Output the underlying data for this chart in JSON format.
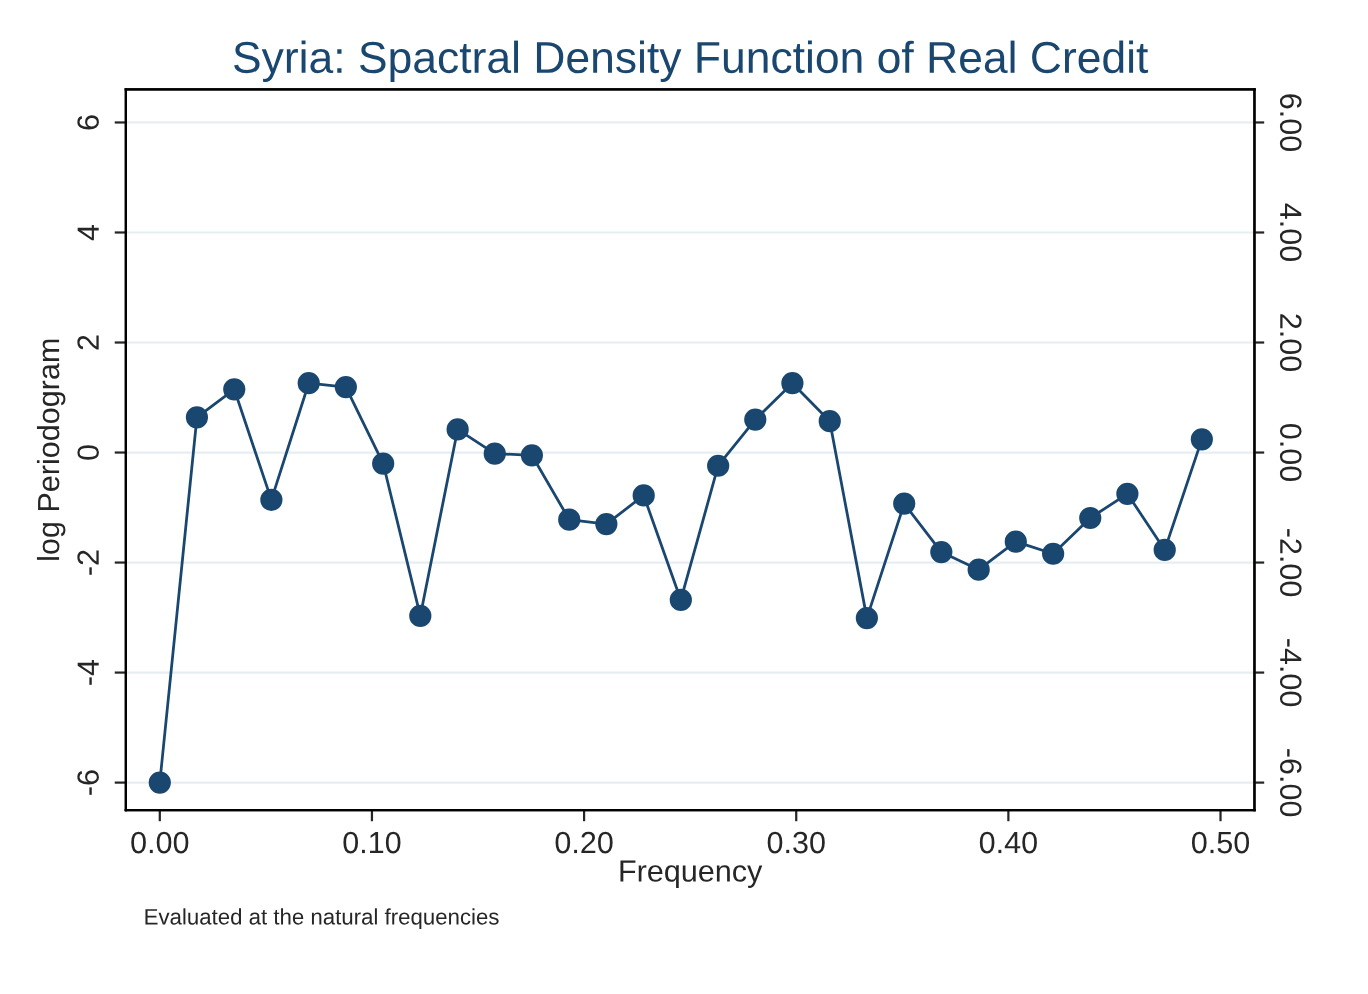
{
  "chart_data": {
    "type": "line",
    "title": "Syria: Spactral Density Function of Real Credit",
    "xlabel": "Frequency",
    "ylabel": "log Periodogram",
    "annotations": [
      "Evaluated at the natural frequencies"
    ],
    "x": [
      0.0,
      0.0175,
      0.0351,
      0.0526,
      0.0702,
      0.0877,
      0.1053,
      0.1228,
      0.1404,
      0.1579,
      0.1754,
      0.193,
      0.2105,
      0.2281,
      0.2456,
      0.2632,
      0.2807,
      0.2982,
      0.3158,
      0.3333,
      0.3509,
      0.3684,
      0.386,
      0.4035,
      0.4211,
      0.4386,
      0.4561,
      0.4737,
      0.4912
    ],
    "series": [
      {
        "color": "#1a476f",
        "values": [
          -6.0,
          0.64,
          1.15,
          -0.86,
          1.26,
          1.19,
          -0.2,
          -2.97,
          0.42,
          -0.02,
          -0.05,
          -1.22,
          -1.3,
          -0.78,
          -2.68,
          -0.24,
          0.6,
          1.26,
          0.57,
          -3.01,
          -0.93,
          -1.81,
          -2.13,
          -1.62,
          -1.84,
          -1.19,
          -0.75,
          -1.77,
          0.24
        ]
      }
    ],
    "xlim": [
      -0.016,
      0.516
    ],
    "xticks": [
      {
        "value": 0,
        "label": "0.00"
      },
      {
        "value": 0.1,
        "label": "0.10"
      },
      {
        "value": 0.2,
        "label": "0.20"
      },
      {
        "value": 0.3,
        "label": "0.30"
      },
      {
        "value": 0.4,
        "label": "0.40"
      },
      {
        "value": 0.5,
        "label": "0.50"
      }
    ],
    "ylim": [
      -6.5,
      6.6
    ],
    "yticks": [
      -6,
      -4,
      -2,
      0,
      2,
      4,
      6
    ],
    "y2lim": [
      -6.5,
      6.6
    ],
    "y2ticks": [
      {
        "value": -6,
        "label": "-6.00"
      },
      {
        "value": -4,
        "label": "-4.00"
      },
      {
        "value": -2,
        "label": "-2.00"
      },
      {
        "value": 0,
        "label": "0.00"
      },
      {
        "value": 2,
        "label": "2.00"
      },
      {
        "value": 4,
        "label": "4.00"
      },
      {
        "value": 6,
        "label": "6.00"
      }
    ],
    "grid": "y",
    "marker": "circle",
    "line_style": "solid"
  }
}
